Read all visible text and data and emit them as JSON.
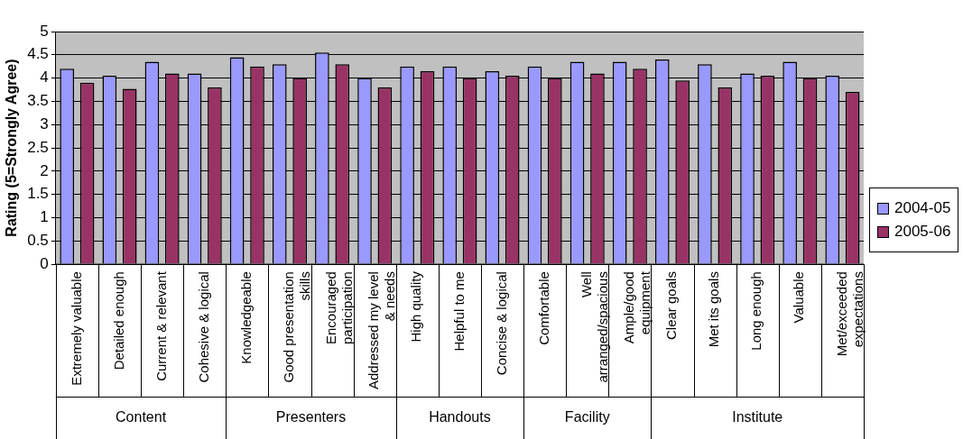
{
  "chart_data": {
    "type": "bar",
    "ylabel": "Rating (5=Strongly Agree)",
    "categories": [
      "Extremely valuable",
      "Detailed enough",
      "Current & relevant",
      "Cohesive & logical",
      "Knowledgeable",
      "Good presentation skills",
      "Encouraged participation",
      "Addressed my level & needs",
      "High quality",
      "Helpful to me",
      "Concise & logical",
      "Comfortable",
      "Well arranged/spacious",
      "Ample/good equipment",
      "Clear goals",
      "Met its goals",
      "Long enough",
      "Valuable",
      "Met/exceeded expectations"
    ],
    "series": [
      {
        "name": "2004-05",
        "color": "#9999ff",
        "values": [
          4.2,
          4.05,
          4.35,
          4.1,
          4.45,
          4.3,
          4.55,
          4.0,
          4.25,
          4.25,
          4.15,
          4.25,
          4.35,
          4.35,
          4.4,
          4.3,
          4.1,
          4.35,
          4.05
        ]
      },
      {
        "name": "2005-06",
        "color": "#993366",
        "values": [
          3.9,
          3.77,
          4.1,
          3.8,
          4.25,
          4.0,
          4.3,
          3.8,
          4.15,
          4.0,
          4.05,
          4.0,
          4.1,
          4.2,
          3.95,
          3.8,
          4.05,
          4.0,
          3.7
        ]
      }
    ],
    "annotations": [
      "Content",
      "Presenters",
      "Handouts",
      "Facility",
      "Institute"
    ],
    "ylim": [
      0,
      5
    ],
    "yticks": [
      0,
      0.5,
      1,
      1.5,
      2,
      2.5,
      3,
      3.5,
      4,
      4.5,
      5
    ],
    "grid": "y",
    "legend": "bottom right"
  }
}
